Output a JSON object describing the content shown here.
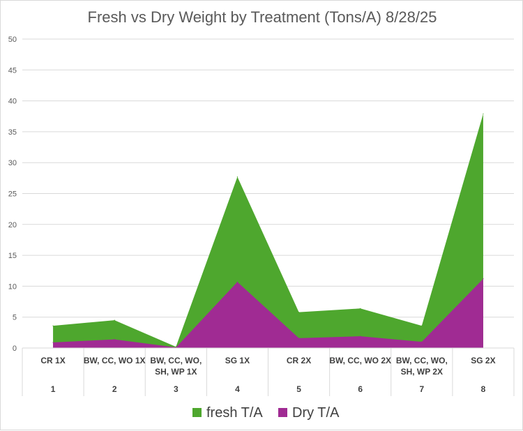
{
  "chart_data": {
    "type": "area",
    "title": "Fresh vs Dry Weight by Treatment (Tons/A) 8/28/25",
    "xlabel": "",
    "ylabel": "",
    "ylim": [
      0,
      50
    ],
    "yticks": [
      0,
      5,
      10,
      15,
      20,
      25,
      30,
      35,
      40,
      45,
      50
    ],
    "grid": true,
    "legend_position": "bottom",
    "categories": [
      {
        "label_lines": [
          "CR  1X"
        ],
        "number": "1"
      },
      {
        "label_lines": [
          "BW, CC, WO 1X"
        ],
        "number": "2"
      },
      {
        "label_lines": [
          "BW, CC, WO,",
          "SH, WP 1X"
        ],
        "number": "3"
      },
      {
        "label_lines": [
          "SG 1X"
        ],
        "number": "4"
      },
      {
        "label_lines": [
          "CR  2X"
        ],
        "number": "5"
      },
      {
        "label_lines": [
          "BW, CC, WO 2X"
        ],
        "number": "6"
      },
      {
        "label_lines": [
          "BW, CC, WO,",
          "SH, WP 2X"
        ],
        "number": "7"
      },
      {
        "label_lines": [
          "SG 2X"
        ],
        "number": "8"
      }
    ],
    "series": [
      {
        "name": "fresh T/A",
        "color": "#4ea72e",
        "values": [
          3.6,
          4.5,
          0.2,
          27.7,
          5.8,
          6.4,
          3.6,
          37.9
        ]
      },
      {
        "name": "Dry T/A",
        "color": "#a02b93",
        "values": [
          0.9,
          1.4,
          0.1,
          10.7,
          1.6,
          1.9,
          1.0,
          11.2
        ]
      }
    ]
  }
}
